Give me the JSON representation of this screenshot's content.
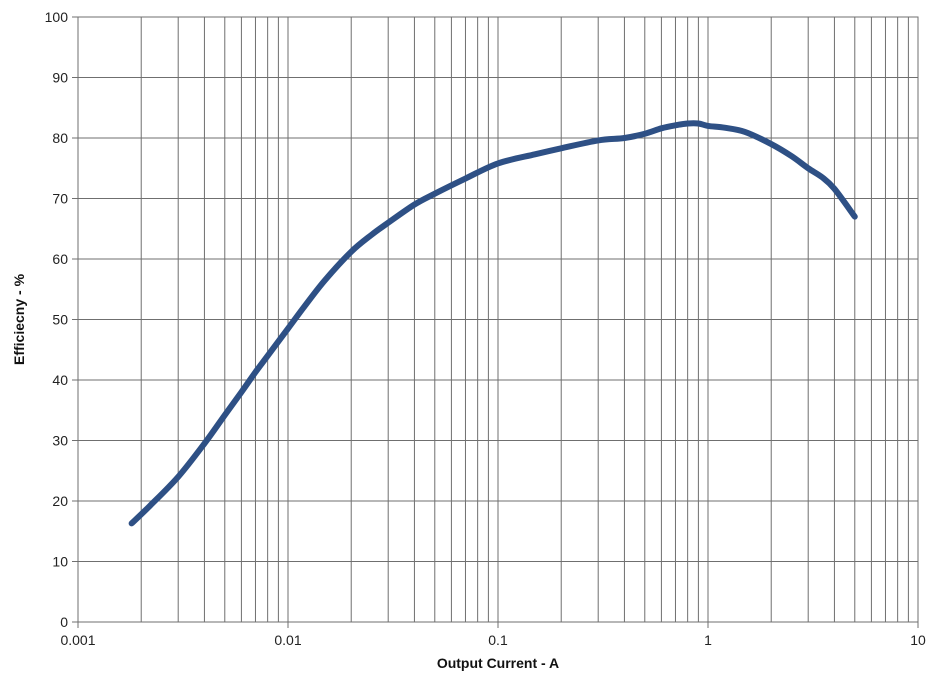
{
  "chart_data": {
    "type": "line",
    "title": "",
    "xlabel": "Output Current - A",
    "ylabel": "Efficiecny - %",
    "xscale": "log",
    "xlim": [
      0.001,
      10
    ],
    "ylim": [
      0,
      100
    ],
    "grid": true,
    "legend": "none",
    "x_ticks": [
      "0.001",
      "0.01",
      "0.1",
      "1",
      "10"
    ],
    "y_ticks": [
      "0",
      "10",
      "20",
      "30",
      "40",
      "50",
      "60",
      "70",
      "80",
      "90",
      "100"
    ],
    "colors": {
      "series": "#2e5085",
      "grid": "#6f6f6f"
    },
    "series": [
      {
        "x": [
          0.0018,
          0.0022,
          0.003,
          0.004,
          0.005,
          0.006,
          0.007,
          0.008,
          0.01,
          0.012,
          0.015,
          0.02,
          0.025,
          0.03,
          0.04,
          0.05,
          0.07,
          0.1,
          0.15,
          0.2,
          0.3,
          0.4,
          0.5,
          0.6,
          0.7,
          0.8,
          0.9,
          1.0,
          1.2,
          1.5,
          2.0,
          2.5,
          3.0,
          3.5,
          4.0,
          5.0
        ],
        "y": [
          16.3,
          19.2,
          24.0,
          29.5,
          34.2,
          38.0,
          41.3,
          44.0,
          48.5,
          52.2,
          56.5,
          61.2,
          64.0,
          66.0,
          69.0,
          70.8,
          73.3,
          75.8,
          77.3,
          78.3,
          79.6,
          80.0,
          80.7,
          81.6,
          82.1,
          82.4,
          82.4,
          82.0,
          81.7,
          81.0,
          79.0,
          77.0,
          75.0,
          73.5,
          71.6,
          67.0
        ]
      }
    ]
  }
}
